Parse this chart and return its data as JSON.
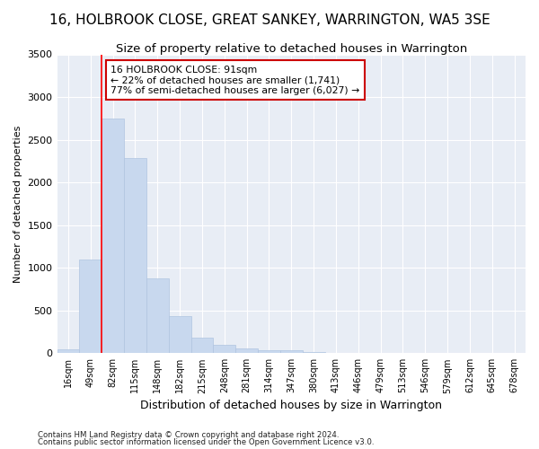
{
  "title": "16, HOLBROOK CLOSE, GREAT SANKEY, WARRINGTON, WA5 3SE",
  "subtitle": "Size of property relative to detached houses in Warrington",
  "xlabel": "Distribution of detached houses by size in Warrington",
  "ylabel": "Number of detached properties",
  "categories": [
    "16sqm",
    "49sqm",
    "82sqm",
    "115sqm",
    "148sqm",
    "182sqm",
    "215sqm",
    "248sqm",
    "281sqm",
    "314sqm",
    "347sqm",
    "380sqm",
    "413sqm",
    "446sqm",
    "479sqm",
    "513sqm",
    "546sqm",
    "579sqm",
    "612sqm",
    "645sqm",
    "678sqm"
  ],
  "values": [
    50,
    1100,
    2750,
    2290,
    875,
    430,
    185,
    100,
    60,
    40,
    30,
    15,
    5,
    3,
    2,
    1,
    0,
    0,
    0,
    0,
    0
  ],
  "bar_color": "#c8d8ee",
  "bar_edgecolor": "#b0c4e0",
  "red_line_x": 1.5,
  "annotation_line1": "16 HOLBROOK CLOSE: 91sqm",
  "annotation_line2": "← 22% of detached houses are smaller (1,741)",
  "annotation_line3": "77% of semi-detached houses are larger (6,027) →",
  "annotation_box_color": "#ffffff",
  "annotation_box_edgecolor": "#cc0000",
  "footnote1": "Contains HM Land Registry data © Crown copyright and database right 2024.",
  "footnote2": "Contains public sector information licensed under the Open Government Licence v3.0.",
  "ylim": [
    0,
    3500
  ],
  "title_fontsize": 11,
  "subtitle_fontsize": 9.5,
  "xlabel_fontsize": 9,
  "ylabel_fontsize": 8,
  "background_color": "#ffffff",
  "plot_background": "#e8edf5"
}
